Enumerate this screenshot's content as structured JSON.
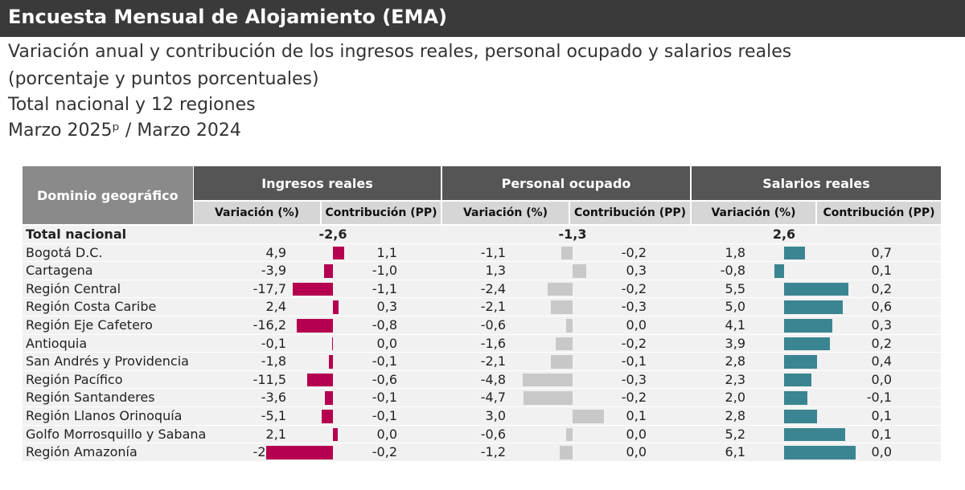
{
  "title": "Encuesta Mensual de Alojamiento (EMA)",
  "subtitle_lines": [
    "Variación anual y contribución de los ingresos reales, personal ocupado y salarios reales",
    "(porcentaje y puntos porcentuales)",
    "Total nacional y 12 regiones",
    "Marzo 2025ᵖ / Marzo 2024"
  ],
  "table_header": {
    "domain": "Dominio geográfico",
    "groups": [
      "Ingresos reales",
      "Personal ocupado",
      "Salarios reales"
    ],
    "sub_variation": "Variación (%)",
    "sub_contribution": "Contribución (PP)"
  },
  "colors": {
    "ingresos": "#b5004f",
    "personal": "#c8c8c8",
    "salarios": "#3a8591"
  },
  "chart_data": {
    "type": "bar",
    "total": {
      "label": "Total nacional",
      "ingresos": "-2,6",
      "personal": "-1,3",
      "salarios": "2,6"
    },
    "categories": [
      "Bogotá D.C.",
      "Cartagena",
      "Región Central",
      "Región Costa Caribe",
      "Región Eje Cafetero",
      "Antioquia",
      "San Andrés y Providencia",
      "Región Pacífico",
      "Región Santanderes",
      "Región Llanos Orinoquía",
      "Golfo Morrosquillo y Sabana",
      "Región Amazonía"
    ],
    "series": [
      {
        "name": "Ingresos reales",
        "variation": [
          4.9,
          -3.9,
          -17.7,
          2.4,
          -16.2,
          -0.1,
          -1.8,
          -11.5,
          -3.6,
          -5.1,
          2.1,
          -29.6
        ],
        "contribution": [
          1.1,
          -1.0,
          -1.1,
          0.3,
          -0.8,
          0.0,
          -0.1,
          -0.6,
          -0.1,
          -0.1,
          0.0,
          -0.2
        ]
      },
      {
        "name": "Personal ocupado",
        "variation": [
          -1.1,
          1.3,
          -2.4,
          -2.1,
          -0.6,
          -1.6,
          -2.1,
          -4.8,
          -4.7,
          3.0,
          -0.6,
          -1.2
        ],
        "contribution": [
          -0.2,
          0.3,
          -0.2,
          -0.3,
          0.0,
          -0.2,
          -0.1,
          -0.3,
          -0.2,
          0.1,
          0.0,
          0.0
        ]
      },
      {
        "name": "Salarios reales",
        "variation": [
          1.8,
          -0.8,
          5.5,
          5.0,
          4.1,
          3.9,
          2.8,
          2.3,
          2.0,
          2.8,
          5.2,
          6.1
        ],
        "contribution": [
          0.7,
          0.1,
          0.2,
          0.6,
          0.3,
          0.2,
          0.4,
          0.0,
          -0.1,
          0.1,
          0.1,
          0.0
        ]
      }
    ]
  }
}
